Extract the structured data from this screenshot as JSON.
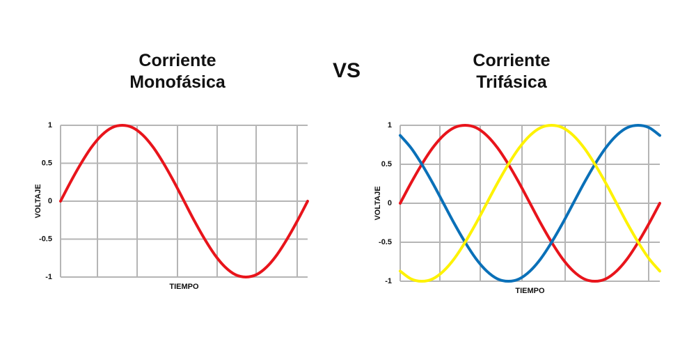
{
  "vs_label": "VS",
  "chart_data": [
    {
      "type": "line",
      "title": "Corriente Monofásica",
      "xlabel": "TIEMPO",
      "ylabel": "VOLTAJE",
      "categories": [
        null,
        null,
        null,
        null,
        null,
        null,
        null,
        null,
        null,
        null,
        null,
        null,
        null,
        null,
        null,
        null,
        null,
        null,
        null,
        null,
        null,
        null,
        null,
        null,
        null
      ],
      "series": [
        {
          "color": "#e8141b",
          "values": [
            0,
            0.26,
            0.5,
            0.71,
            0.87,
            0.97,
            1,
            0.97,
            0.87,
            0.71,
            0.5,
            0.26,
            0,
            -0.26,
            -0.5,
            -0.71,
            -0.87,
            -0.97,
            -1,
            -0.97,
            -0.87,
            -0.71,
            -0.5,
            -0.26,
            0
          ]
        }
      ],
      "ylim": [
        -1,
        1
      ],
      "yticks": [
        -1,
        -0.5,
        0,
        0.5,
        1
      ],
      "grid": true
    },
    {
      "type": "line",
      "title": "Corriente Trifásica",
      "xlabel": "TIEMPO",
      "ylabel": "VOLTAJE",
      "categories": [
        null,
        null,
        null,
        null,
        null,
        null,
        null,
        null,
        null,
        null,
        null,
        null,
        null,
        null,
        null,
        null,
        null,
        null,
        null,
        null,
        null,
        null,
        null,
        null,
        null
      ],
      "series": [
        {
          "color": "#e8141b",
          "values": [
            0,
            0.26,
            0.5,
            0.71,
            0.87,
            0.97,
            1,
            0.97,
            0.87,
            0.71,
            0.5,
            0.26,
            0,
            -0.26,
            -0.5,
            -0.71,
            -0.87,
            -0.97,
            -1,
            -0.97,
            -0.87,
            -0.71,
            -0.5,
            -0.26,
            0
          ]
        },
        {
          "color": "#0a70b8",
          "values": [
            0.87,
            0.71,
            0.5,
            0.26,
            0,
            -0.26,
            -0.5,
            -0.71,
            -0.87,
            -0.97,
            -1,
            -0.97,
            -0.87,
            -0.71,
            -0.5,
            -0.26,
            0,
            0.26,
            0.5,
            0.71,
            0.87,
            0.97,
            1,
            0.97,
            0.87
          ]
        },
        {
          "color": "#fef200",
          "values": [
            -0.87,
            -0.97,
            -1,
            -0.97,
            -0.87,
            -0.71,
            -0.5,
            -0.26,
            0,
            0.26,
            0.5,
            0.71,
            0.87,
            0.97,
            1,
            0.97,
            0.87,
            0.71,
            0.5,
            0.26,
            0,
            -0.26,
            -0.5,
            -0.71,
            -0.87
          ]
        }
      ],
      "ylim": [
        -1,
        1
      ],
      "yticks": [
        -1,
        -0.5,
        0,
        0.5,
        1
      ],
      "grid": true
    }
  ]
}
